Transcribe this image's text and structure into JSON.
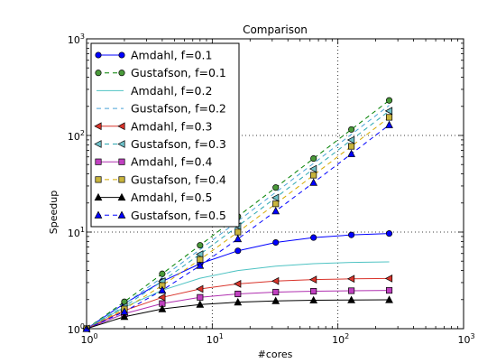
{
  "chart_data": {
    "type": "line",
    "title": "Comparison",
    "xlabel": "#cores",
    "ylabel": "Speedup",
    "xscale": "log",
    "yscale": "log",
    "xlim": [
      1,
      1000
    ],
    "ylim": [
      1,
      1000
    ],
    "grid": true,
    "legend_position": "top-left",
    "x_tick_labels": [
      "10^0",
      "10^1",
      "10^2",
      "10^3"
    ],
    "y_tick_labels": [
      "10^0",
      "10^1",
      "10^2",
      "10^3"
    ],
    "x": [
      1,
      2,
      4,
      8,
      16,
      32,
      64,
      128,
      256
    ],
    "series": [
      {
        "name": "Amdahl, f=0.1",
        "color": "#0000ff",
        "linestyle": "solid",
        "marker": "circle",
        "markerfill": "#0000ff",
        "values": [
          1.0,
          1.82,
          3.08,
          4.71,
          6.4,
          7.8,
          8.77,
          9.34,
          9.66
        ]
      },
      {
        "name": "Gustafson, f=0.1",
        "color": "#008000",
        "linestyle": "dashed",
        "marker": "circle",
        "markerfill": "#4a9a3a",
        "values": [
          1.0,
          1.9,
          3.7,
          7.3,
          14.5,
          28.9,
          57.7,
          115.3,
          230.5
        ]
      },
      {
        "name": "Amdahl, f=0.2",
        "color": "#4fc3c3",
        "linestyle": "solid",
        "marker": "none",
        "markerfill": "none",
        "values": [
          1.0,
          1.67,
          2.5,
          3.33,
          4.0,
          4.44,
          4.71,
          4.85,
          4.92
        ]
      },
      {
        "name": "Gustafson, f=0.2",
        "color": "#4aa3d6",
        "linestyle": "dashed",
        "marker": "none",
        "markerfill": "none",
        "values": [
          1.0,
          1.8,
          3.4,
          6.6,
          13.0,
          25.8,
          51.4,
          102.6,
          205.0
        ]
      },
      {
        "name": "Amdahl, f=0.3",
        "color": "#d9342b",
        "linestyle": "solid",
        "marker": "triangle-left",
        "markerfill": "#d9342b",
        "values": [
          1.0,
          1.54,
          2.11,
          2.58,
          2.91,
          3.11,
          3.22,
          3.28,
          3.31
        ]
      },
      {
        "name": "Gustafson, f=0.3",
        "color": "#2aa6b0",
        "linestyle": "dashed",
        "marker": "triangle-left",
        "markerfill": "#6fc0c8",
        "values": [
          1.0,
          1.7,
          3.1,
          5.9,
          11.5,
          22.7,
          45.1,
          89.9,
          179.5
        ]
      },
      {
        "name": "Amdahl, f=0.4",
        "color": "#b030b0",
        "linestyle": "solid",
        "marker": "square",
        "markerfill": "#c040c0",
        "values": [
          1.0,
          1.43,
          1.82,
          2.11,
          2.29,
          2.39,
          2.44,
          2.47,
          2.49
        ]
      },
      {
        "name": "Gustafson, f=0.4",
        "color": "#d4aa00",
        "linestyle": "dashed",
        "marker": "square",
        "markerfill": "#c8b43c",
        "values": [
          1.0,
          1.6,
          2.8,
          5.2,
          10.0,
          19.6,
          38.8,
          77.2,
          154.0
        ]
      },
      {
        "name": "Amdahl, f=0.5",
        "color": "#000000",
        "linestyle": "solid",
        "marker": "triangle-up",
        "markerfill": "#000000",
        "values": [
          1.0,
          1.33,
          1.6,
          1.78,
          1.88,
          1.94,
          1.97,
          1.98,
          1.99
        ]
      },
      {
        "name": "Gustafson, f=0.5",
        "color": "#0000ff",
        "linestyle": "dashed",
        "marker": "triangle-up",
        "markerfill": "#0000ff",
        "values": [
          1.0,
          1.5,
          2.5,
          4.5,
          8.5,
          16.5,
          32.5,
          64.5,
          128.5
        ]
      }
    ]
  }
}
